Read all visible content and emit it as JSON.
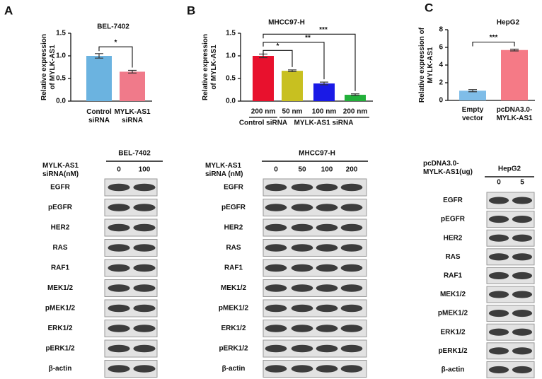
{
  "chart_data": [
    {
      "type": "bar",
      "panel": "A",
      "title": "BEL-7402",
      "ylabel": "Relative expression\nof MYLK-AS1",
      "categories": [
        "Control\nsiRNA",
        "MYLK-AS1\nsiRNA"
      ],
      "values": [
        1.0,
        0.65
      ],
      "errors": [
        0.05,
        0.03
      ],
      "colors": [
        "#6bb3e0",
        "#f07a8a"
      ],
      "ylim": [
        0,
        1.5
      ],
      "yticks": [
        {
          "value": 0,
          "label": "0.0"
        },
        0.5,
        {
          "value": 1,
          "label": "1.0"
        },
        1.5
      ],
      "annotations": [
        "*"
      ]
    },
    {
      "type": "bar",
      "panel": "B",
      "title": "MHCC97-H",
      "ylabel": "Relative expression\nof MYLK-AS1",
      "categories": [
        "200 nm",
        "50 nm",
        "100 nm",
        "200 nm"
      ],
      "groups": [
        "Control siRNA",
        "MYLK-AS1 siRNA"
      ],
      "values": [
        1.0,
        0.67,
        0.39,
        0.14
      ],
      "errors": [
        0.04,
        0.02,
        0.03,
        0.02
      ],
      "colors": [
        "#e8112d",
        "#c8c020",
        "#1a1ae6",
        "#22b03a"
      ],
      "ylim": [
        0,
        1.5
      ],
      "yticks": [
        {
          "value": 0,
          "label": "0.0"
        },
        0.5,
        {
          "value": 1,
          "label": "1.0"
        },
        1.5
      ],
      "annotations": [
        "*",
        "**",
        "***"
      ]
    },
    {
      "type": "bar",
      "panel": "C",
      "title": "HepG2",
      "ylabel": "Relative expression of\nMYLK-AS1",
      "categories": [
        "Empty\nvector",
        "pcDNA3.0-\nMYLK-AS1"
      ],
      "values": [
        1.1,
        5.7
      ],
      "errors": [
        0.12,
        0.1
      ],
      "colors": [
        "#7fbde8",
        "#f57a86"
      ],
      "ylim": [
        0,
        8
      ],
      "yticks": [
        0,
        2,
        4,
        6,
        8
      ],
      "annotations": [
        "***"
      ]
    }
  ],
  "blots": [
    {
      "header": "BEL-7402",
      "condition": "MYLK-AS1\nsiRNA(nM)",
      "lanes": [
        "0",
        "100"
      ],
      "proteins": [
        "EGFR",
        "pEGFR",
        "HER2",
        "RAS",
        "RAF1",
        "MEK1/2",
        "pMEK1/2",
        "ERK1/2",
        "pERK1/2",
        "β-actin"
      ]
    },
    {
      "header": "MHCC97-H",
      "condition": "MYLK-AS1\nsiRNA  (nM)",
      "lanes": [
        "0",
        "50",
        "100",
        "200"
      ],
      "proteins": [
        "EGFR",
        "pEGFR",
        "HER2",
        "RAS",
        "RAF1",
        "MEK1/2",
        "pMEK1/2",
        "ERK1/2",
        "pERK1/2",
        "β-actin"
      ]
    },
    {
      "header": "HepG2",
      "condition": "pcDNA3.0-\nMYLK-AS1(ug)",
      "lanes": [
        "0",
        "5"
      ],
      "proteins": [
        "EGFR",
        "pEGFR",
        "HER2",
        "RAS",
        "RAF1",
        "MEK1/2",
        "pMEK1/2",
        "ERK1/2",
        "pERK1/2",
        "β-actin"
      ]
    }
  ]
}
